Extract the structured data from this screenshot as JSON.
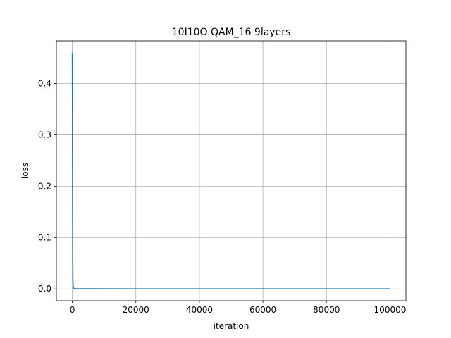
{
  "chart_data": {
    "type": "line",
    "title": "10I10O QAM_16 9layers",
    "xlabel": "iteration",
    "ylabel": "loss",
    "xlim": [
      -5000,
      105000
    ],
    "ylim": [
      -0.023,
      0.483
    ],
    "xticks": [
      0,
      20000,
      40000,
      60000,
      80000,
      100000
    ],
    "xtick_labels": [
      "0",
      "20000",
      "40000",
      "60000",
      "80000",
      "100000"
    ],
    "yticks": [
      0.0,
      0.1,
      0.2,
      0.3,
      0.4
    ],
    "ytick_labels": [
      "0.0",
      "0.1",
      "0.2",
      "0.3",
      "0.4"
    ],
    "grid": true,
    "series": [
      {
        "color": "#1f77b4",
        "x": [
          0,
          50,
          100,
          150,
          200,
          300,
          500,
          1000,
          5000,
          20000,
          40000,
          60000,
          80000,
          100000
        ],
        "y": [
          0.46,
          0.35,
          0.2,
          0.08,
          0.02,
          0.004,
          0.001,
          0.0005,
          0.0003,
          0.0002,
          0.0002,
          0.0002,
          0.0002,
          0.0002
        ]
      }
    ]
  }
}
